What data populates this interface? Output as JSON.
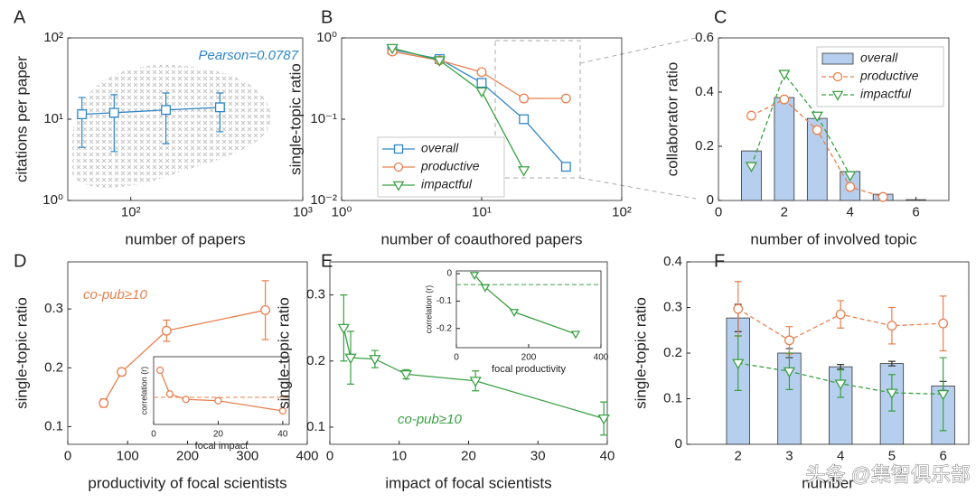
{
  "chart_data": [
    {
      "type": "scatter",
      "panel": "A",
      "xlog": true,
      "ylog": true,
      "xlim": [
        43,
        1000
      ],
      "ylim": [
        1,
        100
      ],
      "xticks": [
        {
          "value": 100,
          "label": "10²"
        },
        {
          "value": 1000,
          "label": "10³"
        }
      ],
      "yticks": [
        {
          "value": 1,
          "label": "10⁰"
        },
        {
          "value": 10,
          "label": "10¹"
        },
        {
          "value": 100,
          "label": "10²"
        }
      ],
      "xlabel": "number of papers",
      "ylabel": "citations per paper",
      "annotation": "Pearson=0.0787",
      "series": [
        {
          "color": "#2f86c6",
          "marker": "square",
          "x": [
            52,
            80,
            160,
            330
          ],
          "values": [
            11.5,
            12,
            13,
            14
          ],
          "errors": [
            7,
            8,
            8,
            7
          ]
        }
      ]
    },
    {
      "type": "line",
      "panel": "B",
      "xlog": true,
      "ylog": true,
      "xlim": [
        1,
        100
      ],
      "ylim": [
        0.01,
        1
      ],
      "xticks": [
        {
          "value": 1,
          "label": "10⁰"
        },
        {
          "value": 10,
          "label": "10¹"
        },
        {
          "value": 100,
          "label": "10²"
        }
      ],
      "yticks": [
        {
          "value": 0.01,
          "label": "10⁻²"
        },
        {
          "value": 0.1,
          "label": "10⁻¹"
        },
        {
          "value": 1,
          "label": "10⁰"
        }
      ],
      "xlabel": "number of coauthored papers",
      "ylabel": "single-topic ratio",
      "legend": "lower left",
      "series": [
        {
          "name": "overall",
          "color": "#2f86c6",
          "marker": "square",
          "x": [
            2.3,
            5,
            10,
            20,
            40
          ],
          "values": [
            0.72,
            0.55,
            0.28,
            0.1,
            0.026
          ]
        },
        {
          "name": "productive",
          "color": "#e8804f",
          "marker": "circle",
          "x": [
            2.3,
            5,
            10,
            20,
            40
          ],
          "values": [
            0.68,
            0.53,
            0.38,
            0.18,
            0.18
          ]
        },
        {
          "name": "impactful",
          "color": "#3aa043",
          "marker": "triangle",
          "x": [
            2.3,
            5,
            10,
            20
          ],
          "values": [
            0.75,
            0.53,
            0.22,
            0.0235
          ]
        }
      ]
    },
    {
      "type": "bar",
      "panel": "C",
      "xlim": [
        0,
        7
      ],
      "ylim": [
        0,
        0.6
      ],
      "xticks": [
        0,
        2,
        4,
        6
      ],
      "yticks": [
        0,
        0.2,
        0.4,
        0.6
      ],
      "xlabel": "number of involved topic",
      "ylabel": "collaborator ratio",
      "legend": "upper right",
      "series": [
        {
          "name": "overall",
          "kind": "bar",
          "color": "#b7cfee",
          "x": [
            1,
            2,
            3,
            4,
            5,
            6
          ],
          "values": [
            0.183,
            0.38,
            0.303,
            0.107,
            0.023,
            0.003
          ]
        },
        {
          "name": "productive",
          "color": "#e8804f",
          "marker": "circle",
          "dashed": true,
          "x": [
            1,
            2,
            3,
            4,
            5
          ],
          "values": [
            0.313,
            0.373,
            0.26,
            0.05,
            0.013
          ]
        },
        {
          "name": "impactful",
          "color": "#3aa043",
          "marker": "triangle",
          "dashed": true,
          "x": [
            1,
            2,
            3,
            4
          ],
          "values": [
            0.127,
            0.467,
            0.313,
            0.093
          ]
        }
      ]
    },
    {
      "type": "line",
      "panel": "D",
      "xlim": [
        0,
        400
      ],
      "ylim": [
        0.07,
        0.38
      ],
      "xticks": [
        0,
        100,
        200,
        300,
        400
      ],
      "yticks": [
        0.1,
        0.2,
        0.3
      ],
      "xlabel": "productivity of focal scientists",
      "ylabel": "single-topic ratio",
      "annotation": "co-pub≥10",
      "series": [
        {
          "color": "#e8804f",
          "marker": "circle",
          "x": [
            60,
            90,
            165,
            330
          ],
          "values": [
            0.14,
            0.193,
            0.263,
            0.298
          ],
          "errors": [
            0.007,
            0.006,
            0.018,
            0.05
          ]
        }
      ],
      "inset": {
        "type": "line",
        "xlim": [
          0,
          42
        ],
        "ylim": [
          0,
          1
        ],
        "xticks": [
          0,
          20,
          40
        ],
        "yticks": [],
        "xlabel": "focal impact",
        "ylabel": "correlation (r)",
        "reference": 0.4,
        "series": [
          {
            "color": "#e8804f",
            "marker": "circle",
            "x": [
              2,
              5,
              10,
              20,
              40
            ],
            "values": [
              0.8,
              0.45,
              0.37,
              0.35,
              0.2
            ]
          }
        ]
      }
    },
    {
      "type": "line",
      "panel": "E",
      "xlim": [
        0,
        40
      ],
      "ylim": [
        0.074,
        0.35
      ],
      "xticks": [
        0,
        10,
        20,
        30,
        40
      ],
      "yticks": [
        0.1,
        0.2,
        0.3
      ],
      "xlabel": "impact of focal scientists",
      "ylabel": "single-topic ratio",
      "annotation": "co-pub≥10",
      "series": [
        {
          "color": "#3aa043",
          "marker": "triangle",
          "x": [
            2,
            3,
            6.5,
            11,
            21,
            39.5
          ],
          "values": [
            0.25,
            0.205,
            0.203,
            0.18,
            0.17,
            0.113
          ],
          "errors": [
            0.05,
            0.04,
            0.013,
            0.007,
            0.015,
            0.025
          ]
        }
      ],
      "inset": {
        "type": "line",
        "xlim": [
          0,
          400
        ],
        "ylim": [
          -0.27,
          0.01
        ],
        "xticks": [
          0,
          200,
          400
        ],
        "yticks": [
          0,
          -0.1,
          -0.2
        ],
        "xlabel": "focal productivity",
        "ylabel": "correlation (r)",
        "reference": -0.04,
        "series": [
          {
            "color": "#3aa043",
            "marker": "triangle",
            "x": [
              50,
              80,
              160,
              330
            ],
            "values": [
              -0.005,
              -0.05,
              -0.14,
              -0.22
            ]
          }
        ]
      }
    },
    {
      "type": "bar",
      "panel": "F",
      "xlim": [
        1,
        6.5
      ],
      "ylim": [
        0,
        0.4
      ],
      "xticks": [
        2,
        3,
        4,
        5,
        6
      ],
      "yticks": [
        0,
        0.1,
        0.2,
        0.3,
        0.4
      ],
      "xlabel": "number",
      "ylabel": "single-topic ratio",
      "series": [
        {
          "kind": "bar",
          "color": "#b7cfee",
          "x": [
            2,
            3,
            4,
            5,
            6
          ],
          "values": [
            0.277,
            0.2,
            0.17,
            0.177,
            0.128
          ],
          "errors": [
            0.03,
            0.01,
            0.005,
            0.005,
            0.01
          ]
        },
        {
          "color": "#e8804f",
          "marker": "circle",
          "dashed": true,
          "x": [
            2,
            3,
            4,
            5,
            6
          ],
          "values": [
            0.297,
            0.228,
            0.285,
            0.26,
            0.265
          ],
          "errors": [
            0.06,
            0.03,
            0.03,
            0.04,
            0.06
          ]
        },
        {
          "color": "#3aa043",
          "marker": "triangle",
          "dashed": true,
          "x": [
            2,
            3,
            4,
            5,
            6
          ],
          "values": [
            0.178,
            0.16,
            0.133,
            0.113,
            0.11
          ],
          "errors": [
            0.06,
            0.04,
            0.03,
            0.04,
            0.08
          ]
        }
      ]
    }
  ],
  "watermark": "头条 @集智俱乐部"
}
